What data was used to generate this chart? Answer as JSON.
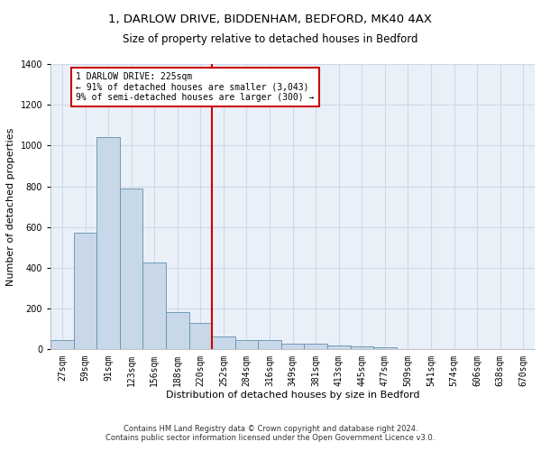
{
  "title_line1": "1, DARLOW DRIVE, BIDDENHAM, BEDFORD, MK40 4AX",
  "title_line2": "Size of property relative to detached houses in Bedford",
  "xlabel": "Distribution of detached houses by size in Bedford",
  "ylabel": "Number of detached properties",
  "footnote": "Contains HM Land Registry data © Crown copyright and database right 2024.\nContains public sector information licensed under the Open Government Licence v3.0.",
  "bar_labels": [
    "27sqm",
    "59sqm",
    "91sqm",
    "123sqm",
    "156sqm",
    "188sqm",
    "220sqm",
    "252sqm",
    "284sqm",
    "316sqm",
    "349sqm",
    "381sqm",
    "413sqm",
    "445sqm",
    "477sqm",
    "509sqm",
    "541sqm",
    "574sqm",
    "606sqm",
    "638sqm",
    "670sqm"
  ],
  "bar_values": [
    47,
    573,
    1040,
    788,
    425,
    183,
    130,
    65,
    47,
    47,
    30,
    28,
    20,
    13,
    12,
    0,
    0,
    0,
    0,
    0,
    0
  ],
  "bar_color": "#c8d8e8",
  "bar_edge_color": "#6090b0",
  "vline_x": 6.5,
  "vline_color": "#cc0000",
  "annotation_text": "1 DARLOW DRIVE: 225sqm\n← 91% of detached houses are smaller (3,043)\n9% of semi-detached houses are larger (300) →",
  "annotation_box_color": "#cc0000",
  "ylim": [
    0,
    1400
  ],
  "yticks": [
    0,
    200,
    400,
    600,
    800,
    1000,
    1200,
    1400
  ],
  "grid_color": "#d0d8e8",
  "bg_color": "#eaf0f8",
  "title_fontsize": 9.5,
  "subtitle_fontsize": 8.5,
  "tick_fontsize": 7,
  "xlabel_fontsize": 8,
  "ylabel_fontsize": 8,
  "annotation_fontsize": 7,
  "footnote_fontsize": 6
}
